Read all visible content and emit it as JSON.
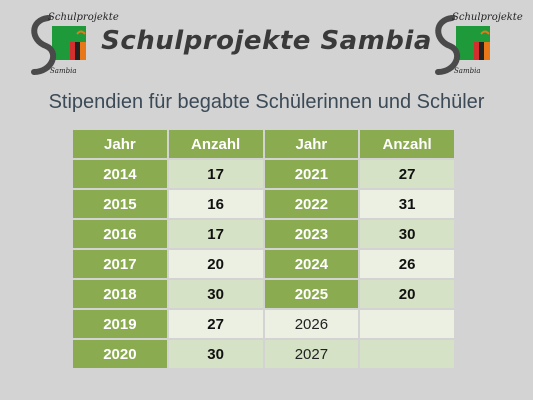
{
  "header": {
    "title": "Schulprojekte Sambia",
    "logo_text_top": "Schulprojekte",
    "logo_text_bottom": "Sambia"
  },
  "subtitle": "Stipendien für begabte Schülerinnen und Schüler",
  "colors": {
    "background": "#d3d3d3",
    "accent_green": "#8aab4f",
    "row_dark": "#d6e2c6",
    "row_light": "#ebf0e3",
    "flag_green": "#1e9a3a",
    "flag_red": "#d32f2f",
    "flag_orange": "#e8771a"
  },
  "table": {
    "headers": [
      "Jahr",
      "Anzahl",
      "Jahr",
      "Anzahl"
    ],
    "rows": [
      {
        "year1": "2014",
        "count1": "17",
        "year2": "2021",
        "count2": "27"
      },
      {
        "year1": "2015",
        "count1": "16",
        "year2": "2022",
        "count2": "31"
      },
      {
        "year1": "2016",
        "count1": "17",
        "year2": "2023",
        "count2": "30"
      },
      {
        "year1": "2017",
        "count1": "20",
        "year2": "2024",
        "count2": "26"
      },
      {
        "year1": "2018",
        "count1": "30",
        "year2": "2025",
        "count2": "20"
      },
      {
        "year1": "2019",
        "count1": "27",
        "year2": "2026",
        "count2": ""
      },
      {
        "year1": "2020",
        "count1": "30",
        "year2": "2027",
        "count2": ""
      }
    ]
  }
}
